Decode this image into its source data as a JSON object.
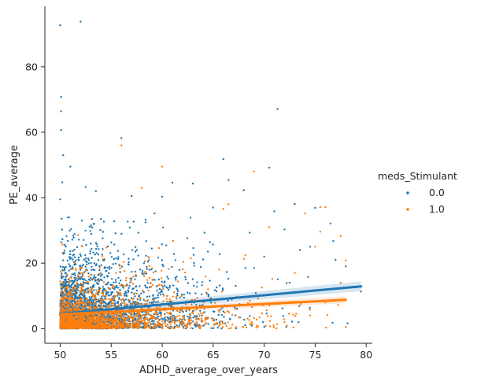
{
  "chart_data": {
    "type": "scatter",
    "xlabel": "ADHD_average_over_years",
    "ylabel": "PE_average",
    "xlim": [
      48.5,
      80.6
    ],
    "ylim": [
      -4.5,
      98.5
    ],
    "xticks": [
      50,
      55,
      60,
      65,
      70,
      75,
      80
    ],
    "yticks": [
      0,
      20,
      40,
      60,
      80
    ],
    "xtick_labels": [
      "50",
      "55",
      "60",
      "65",
      "70",
      "75",
      "80"
    ],
    "ytick_labels": [
      "0",
      "20",
      "40",
      "60",
      "80"
    ],
    "grid": false,
    "legend": {
      "title": "meds_Stimulant",
      "placement": "right",
      "entries": [
        "0.0",
        "1.0"
      ]
    },
    "series": [
      {
        "name": "0.0",
        "color": "#1f77b4",
        "points": [
          [
            50.0,
            92.7
          ],
          [
            52.0,
            93.8
          ],
          [
            50.1,
            70.8
          ],
          [
            50.1,
            66.4
          ],
          [
            50.1,
            60.7
          ],
          [
            56.0,
            58.2
          ],
          [
            66.0,
            51.8
          ],
          [
            71.3,
            67.1
          ],
          [
            50.3,
            53.0
          ],
          [
            51.0,
            49.5
          ],
          [
            50.2,
            44.7
          ],
          [
            52.5,
            43.3
          ],
          [
            50.0,
            39.5
          ],
          [
            53.5,
            42.0
          ],
          [
            57.0,
            40.5
          ],
          [
            60.0,
            40.3
          ],
          [
            61.0,
            44.6
          ],
          [
            63.0,
            44.3
          ],
          [
            66.5,
            45.4
          ],
          [
            70.5,
            49.2
          ],
          [
            68.0,
            42.3
          ],
          [
            65.0,
            37.0
          ],
          [
            71.0,
            35.8
          ],
          [
            73.0,
            38.1
          ],
          [
            72.0,
            30.3
          ],
          [
            75.0,
            36.9
          ],
          [
            76.5,
            32.1
          ],
          [
            77.0,
            21.0
          ],
          [
            78.0,
            19.0
          ],
          [
            79.5,
            11.3
          ],
          [
            74.5,
            25.0
          ],
          [
            73.5,
            24.0
          ],
          [
            72.5,
            14.0
          ],
          [
            70.0,
            22.0
          ],
          [
            69.0,
            18.5
          ]
        ],
        "regression": {
          "x": [
            50.0,
            79.5
          ],
          "y": [
            4.5,
            12.9
          ],
          "ci_halfwidth": [
            0.8,
            1.5
          ]
        }
      },
      {
        "name": "1.0",
        "color": "#ff7f0e",
        "points": [
          [
            56.0,
            56.0
          ],
          [
            60.0,
            49.5
          ],
          [
            58.0,
            43.0
          ],
          [
            69.0,
            48.0
          ],
          [
            66.5,
            38.0
          ],
          [
            66.0,
            36.6
          ],
          [
            75.5,
            37.1
          ],
          [
            76.0,
            37.1
          ],
          [
            74.0,
            35.2
          ],
          [
            75.5,
            29.6
          ],
          [
            77.5,
            28.3
          ],
          [
            78.0,
            20.8
          ],
          [
            77.5,
            14.0
          ],
          [
            75.0,
            25.0
          ],
          [
            73.0,
            17.0
          ],
          [
            76.0,
            8.0
          ],
          [
            74.5,
            4.0
          ],
          [
            72.0,
            2.0
          ],
          [
            78.0,
            0.5
          ],
          [
            70.5,
            31.0
          ]
        ],
        "regression": {
          "x": [
            50.0,
            78.0
          ],
          "y": [
            4.3,
            8.8
          ],
          "ci_halfwidth": [
            0.5,
            1.1
          ]
        }
      }
    ]
  }
}
